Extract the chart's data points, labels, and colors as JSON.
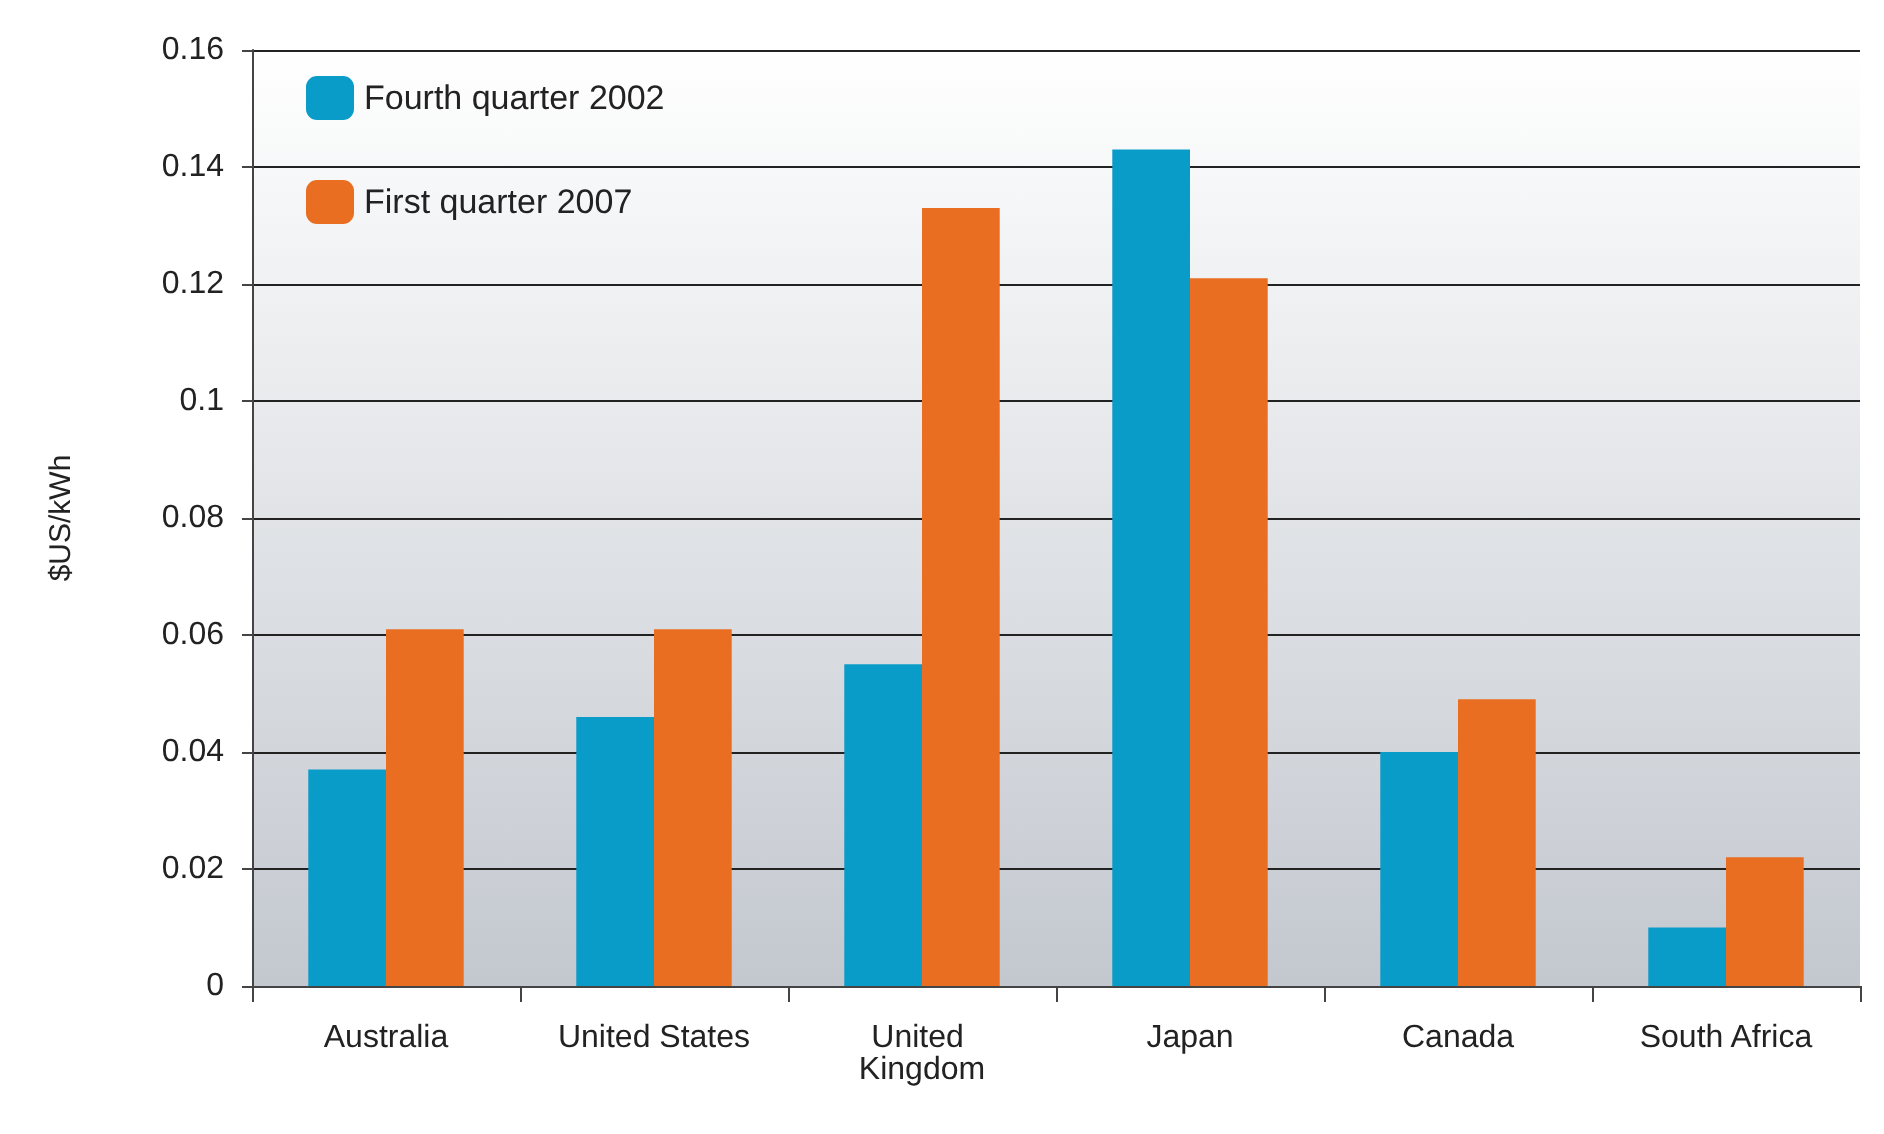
{
  "chart_data": {
    "type": "bar",
    "ylabel": "$US/kWh",
    "categories": [
      "Australia",
      "United States",
      "United Kingdom",
      "Japan",
      "Canada",
      "South Africa"
    ],
    "series": [
      {
        "name": "Fourth quarter 2002",
        "color": "#0a9cc8",
        "values": [
          0.037,
          0.046,
          0.055,
          0.143,
          0.04,
          0.01
        ]
      },
      {
        "name": "First quarter 2007",
        "color": "#e96e22",
        "values": [
          0.061,
          0.061,
          0.133,
          0.121,
          0.049,
          0.022
        ]
      }
    ],
    "ylim": [
      0,
      0.16
    ],
    "yticks": [
      0,
      0.02,
      0.04,
      0.06,
      0.08,
      0.1,
      0.12,
      0.14,
      0.16
    ],
    "grid": "y",
    "legend": "top left"
  }
}
